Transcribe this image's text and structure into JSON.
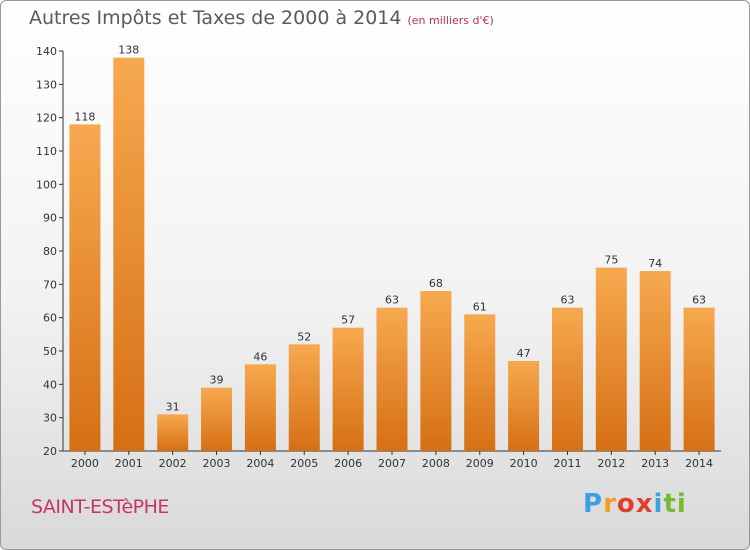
{
  "header": {
    "title": "Autres Impôts et Taxes de 2000 à 2014",
    "unit": "(en milliers d'€)"
  },
  "footer": {
    "commune": "SAINT-ESTèPHE",
    "brand": [
      "P",
      "r",
      "o",
      "x",
      "i",
      "t",
      "i"
    ]
  },
  "colors": {
    "bar_top": "#f7a94f",
    "bar_bottom": "#d66f14",
    "title": "#5a5a5a",
    "commune": "#c8346a"
  },
  "chart_data": {
    "type": "bar",
    "title": "Autres Impôts et Taxes de 2000 à 2014",
    "subtitle": "(en milliers d'€)",
    "categories": [
      "2000",
      "2001",
      "2002",
      "2003",
      "2004",
      "2005",
      "2006",
      "2007",
      "2008",
      "2009",
      "2010",
      "2011",
      "2012",
      "2013",
      "2014"
    ],
    "values": [
      118,
      138,
      31,
      39,
      46,
      52,
      57,
      63,
      68,
      61,
      47,
      63,
      75,
      74,
      63
    ],
    "ylim": [
      20,
      140
    ],
    "yticks": [
      20,
      30,
      40,
      50,
      60,
      70,
      80,
      90,
      100,
      110,
      120,
      130,
      140
    ],
    "grid": false,
    "data_labels": true
  }
}
